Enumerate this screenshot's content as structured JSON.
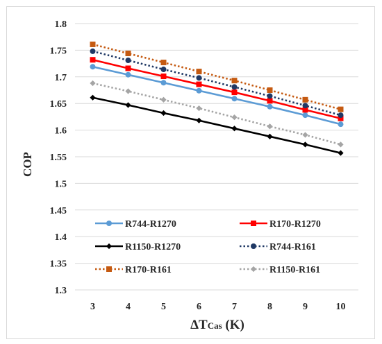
{
  "chart_data": {
    "type": "line",
    "title": "",
    "xlabel_main": "ΔT",
    "xlabel_sub": "Cas",
    "xlabel_unit": " (K)",
    "ylabel": "COP",
    "x": [
      3,
      4,
      5,
      6,
      7,
      8,
      9,
      10
    ],
    "x_tick_labels": [
      "3",
      "4",
      "5",
      "6",
      "7",
      "8",
      "9",
      "10"
    ],
    "ylim": [
      1.3,
      1.8
    ],
    "y_ticks": [
      1.3,
      1.35,
      1.4,
      1.45,
      1.5,
      1.55,
      1.6,
      1.65,
      1.7,
      1.75,
      1.8
    ],
    "y_tick_labels": [
      "1.3",
      "1.35",
      "1.4",
      "1.45",
      "1.5",
      "1.55",
      "1.6",
      "1.65",
      "1.7",
      "1.75",
      "1.8"
    ],
    "grid": "horizontal",
    "legend_position": "inside-bottom",
    "series": [
      {
        "name": "R744-R1270",
        "values": [
          1.719,
          1.704,
          1.689,
          1.674,
          1.659,
          1.644,
          1.628,
          1.611
        ],
        "color": "#5b9bd5",
        "dash": "solid",
        "marker": "circle"
      },
      {
        "name": "R170-R1270",
        "values": [
          1.732,
          1.716,
          1.701,
          1.686,
          1.671,
          1.655,
          1.638,
          1.622
        ],
        "color": "#ff0000",
        "dash": "solid",
        "marker": "square"
      },
      {
        "name": "R1150-R1270",
        "values": [
          1.661,
          1.647,
          1.632,
          1.618,
          1.603,
          1.588,
          1.573,
          1.557
        ],
        "color": "#000000",
        "dash": "solid",
        "marker": "diamond"
      },
      {
        "name": "R744-R161",
        "values": [
          1.748,
          1.731,
          1.714,
          1.698,
          1.681,
          1.664,
          1.646,
          1.628
        ],
        "color": "#1f3864",
        "dash": "dotted",
        "marker": "circle"
      },
      {
        "name": "R170-R161",
        "values": [
          1.761,
          1.744,
          1.727,
          1.71,
          1.693,
          1.675,
          1.657,
          1.639
        ],
        "color": "#c55a11",
        "dash": "dotted",
        "marker": "square"
      },
      {
        "name": "R1150-R161",
        "values": [
          1.688,
          1.673,
          1.657,
          1.641,
          1.624,
          1.607,
          1.591,
          1.573
        ],
        "color": "#a5a5a5",
        "dash": "dotted",
        "marker": "diamond"
      }
    ]
  }
}
